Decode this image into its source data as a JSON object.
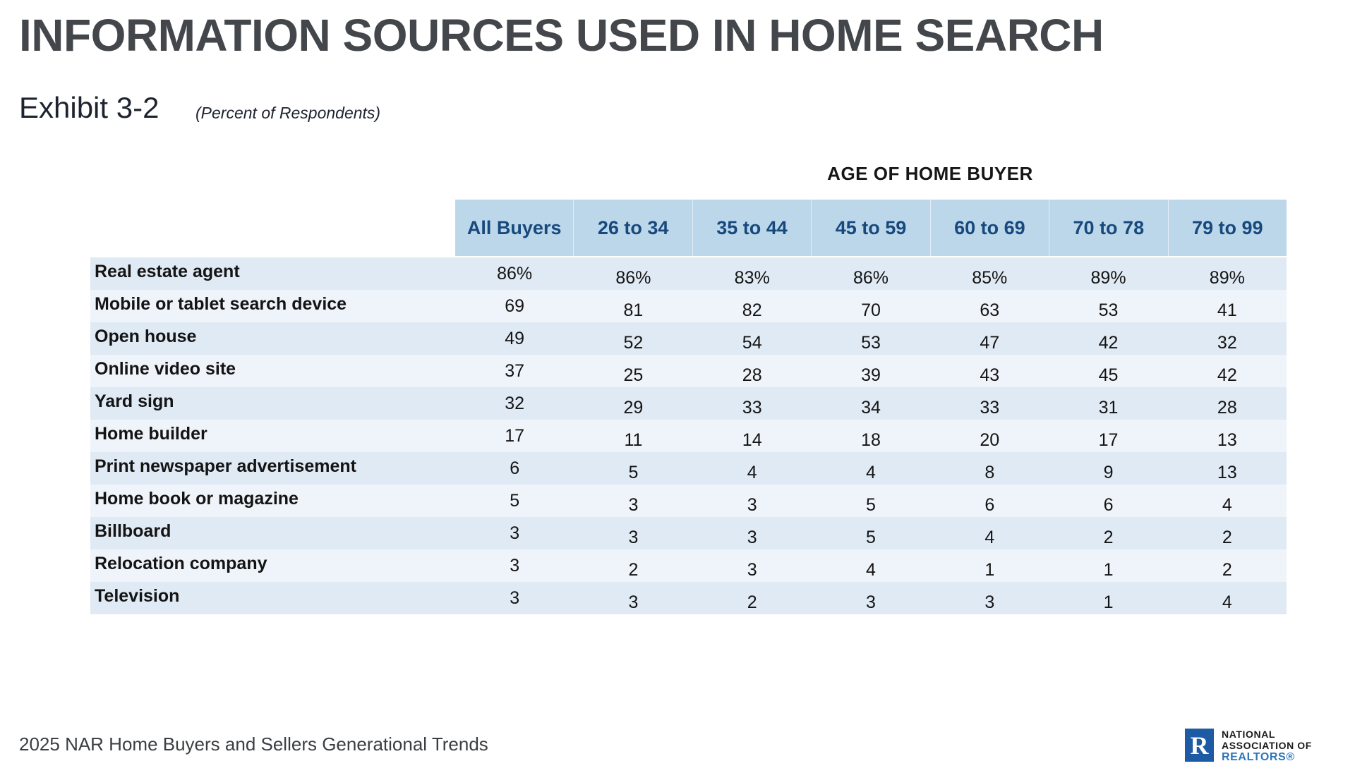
{
  "page": {
    "title": "INFORMATION SOURCES USED IN HOME SEARCH",
    "exhibit": "Exhibit 3-2",
    "subtitle": "(Percent of Respondents)",
    "footer_source": "2025 NAR Home Buyers and Sellers Generational Trends"
  },
  "logo": {
    "monogram": "R",
    "line1": "NATIONAL",
    "line2": "ASSOCIATION OF",
    "line3": "REALTORS®"
  },
  "table": {
    "group_header": "AGE OF HOME BUYER",
    "columns": [
      "All Buyers",
      "26 to 34",
      "35 to 44",
      "45 to 59",
      "60 to 69",
      "70 to 78",
      "79 to 99"
    ],
    "rows": [
      {
        "label": "Real estate agent",
        "values": [
          "86%",
          "86%",
          "83%",
          "86%",
          "85%",
          "89%",
          "89%"
        ]
      },
      {
        "label": "Mobile or tablet search device",
        "values": [
          "69",
          "81",
          "82",
          "70",
          "63",
          "53",
          "41"
        ]
      },
      {
        "label": "Open house",
        "values": [
          "49",
          "52",
          "54",
          "53",
          "47",
          "42",
          "32"
        ]
      },
      {
        "label": "Online video site",
        "values": [
          "37",
          "25",
          "28",
          "39",
          "43",
          "45",
          "42"
        ]
      },
      {
        "label": "Yard sign",
        "values": [
          "32",
          "29",
          "33",
          "34",
          "33",
          "31",
          "28"
        ]
      },
      {
        "label": "Home builder",
        "values": [
          "17",
          "11",
          "14",
          "18",
          "20",
          "17",
          "13"
        ]
      },
      {
        "label": "Print newspaper advertisement",
        "values": [
          "6",
          "5",
          "4",
          "4",
          "8",
          "9",
          "13"
        ]
      },
      {
        "label": "Home book or magazine",
        "values": [
          "5",
          "3",
          "3",
          "5",
          "6",
          "6",
          "4"
        ]
      },
      {
        "label": "Billboard",
        "values": [
          "3",
          "3",
          "3",
          "5",
          "4",
          "2",
          "2"
        ]
      },
      {
        "label": "Relocation company",
        "values": [
          "3",
          "2",
          "3",
          "4",
          "1",
          "1",
          "2"
        ]
      },
      {
        "label": "Television",
        "values": [
          "3",
          "3",
          "2",
          "3",
          "3",
          "1",
          "4"
        ]
      }
    ]
  },
  "colors": {
    "header_band": "#bdd7ea",
    "header_text": "#17497d",
    "row_stripe_odd": "#e0eaf4",
    "row_stripe_even": "#eff4fa",
    "title_gray": "#43474b",
    "nar_square_blue": "#1d5ba5",
    "realtors_blue": "#2d76b8"
  },
  "chart_data": {
    "type": "table",
    "title": "INFORMATION SOURCES USED IN HOME SEARCH",
    "exhibit": "Exhibit 3-2",
    "subtitle": "(Percent of Respondents)",
    "group_header": "AGE OF HOME BUYER",
    "units": "percent of respondents",
    "categories": [
      "All Buyers",
      "26 to 34",
      "35 to 44",
      "45 to 59",
      "60 to 69",
      "70 to 78",
      "79 to 99"
    ],
    "series": [
      {
        "name": "Real estate agent",
        "values": [
          86,
          86,
          83,
          86,
          85,
          89,
          89
        ]
      },
      {
        "name": "Mobile or tablet search device",
        "values": [
          69,
          81,
          82,
          70,
          63,
          53,
          41
        ]
      },
      {
        "name": "Open house",
        "values": [
          49,
          52,
          54,
          53,
          47,
          42,
          32
        ]
      },
      {
        "name": "Online video site",
        "values": [
          37,
          25,
          28,
          39,
          43,
          45,
          42
        ]
      },
      {
        "name": "Yard sign",
        "values": [
          32,
          29,
          33,
          34,
          33,
          31,
          28
        ]
      },
      {
        "name": "Home builder",
        "values": [
          17,
          11,
          14,
          18,
          20,
          17,
          13
        ]
      },
      {
        "name": "Print newspaper advertisement",
        "values": [
          6,
          5,
          4,
          4,
          8,
          9,
          13
        ]
      },
      {
        "name": "Home book or magazine",
        "values": [
          5,
          3,
          3,
          5,
          6,
          6,
          4
        ]
      },
      {
        "name": "Billboard",
        "values": [
          3,
          3,
          3,
          5,
          4,
          2,
          2
        ]
      },
      {
        "name": "Relocation company",
        "values": [
          3,
          2,
          3,
          4,
          1,
          1,
          2
        ]
      },
      {
        "name": "Television",
        "values": [
          3,
          3,
          2,
          3,
          3,
          1,
          4
        ]
      }
    ],
    "source": "2025 NAR Home Buyers and Sellers Generational Trends"
  }
}
